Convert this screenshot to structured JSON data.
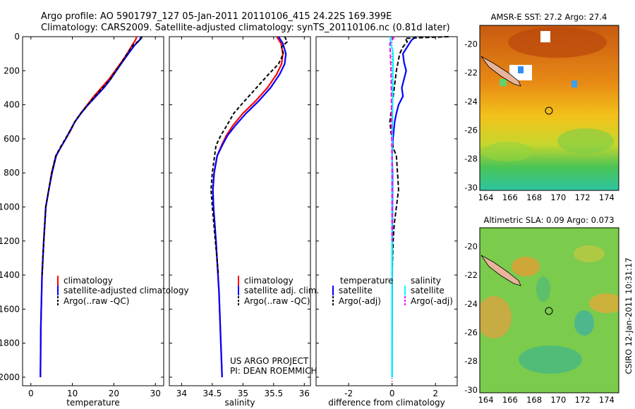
{
  "header": {
    "line1": "Argo profile: AO 5901797_127 05-Jan-2011 20110106_415 24.22S 169.399E",
    "line2": "Climatology: CARS2009. Satellite-adjusted climatology: synTS_20110106.nc (0.81d later)"
  },
  "footer": {
    "project": "US ARGO PROJECT",
    "pi": "PI: DEAN ROEMMICH",
    "stamp": "CSIRO 12-Jan-2011 10:31:17"
  },
  "colors": {
    "climatology": "#ff0000",
    "satellite": "#0000ff",
    "argo": "#000000",
    "sat_salinity": "#00ffff",
    "argo_salinity": "#ff00ff",
    "land": "#e8b49a"
  },
  "chart_data": [
    {
      "type": "line",
      "id": "temperature",
      "xlabel": "temperature",
      "xlim": [
        -2,
        32
      ],
      "ylim": [
        2050,
        0
      ],
      "xticks": [
        0,
        10,
        20,
        30
      ],
      "yticks": [
        0,
        200,
        400,
        600,
        800,
        1000,
        1200,
        1400,
        1600,
        1800,
        2000
      ],
      "legend": [
        "climatology",
        "satellite-adjusted climatology",
        "Argo(..raw -QC)"
      ],
      "series": [
        {
          "name": "climatology",
          "color": "#ff0000",
          "dash": "",
          "x": [
            25.5,
            25.2,
            24.4,
            23.2,
            21.8,
            20.3,
            18.8,
            17.0,
            15.2,
            13.6,
            12.0,
            10.6,
            9.6,
            8.4,
            7.2,
            6.0,
            5.0,
            4.3,
            3.6,
            3.1,
            2.7,
            2.4,
            2.3
          ],
          "y": [
            0,
            20,
            50,
            100,
            150,
            200,
            250,
            300,
            350,
            400,
            450,
            500,
            550,
            600,
            650,
            700,
            800,
            900,
            1000,
            1200,
            1400,
            1700,
            2000
          ]
        },
        {
          "name": "satellite-adjusted climatology",
          "color": "#0000ff",
          "dash": "",
          "x": [
            26.6,
            26.2,
            25.0,
            23.5,
            22.0,
            20.6,
            19.2,
            17.6,
            15.7,
            13.8,
            12.1,
            10.6,
            9.5,
            8.4,
            7.2,
            6.1,
            5.1,
            4.3,
            3.6,
            3.1,
            2.7,
            2.4,
            2.3
          ],
          "y": [
            0,
            20,
            50,
            100,
            150,
            200,
            250,
            300,
            350,
            400,
            450,
            500,
            550,
            600,
            650,
            700,
            800,
            900,
            1000,
            1200,
            1400,
            1700,
            2000
          ]
        },
        {
          "name": "Argo(..raw -QC)",
          "color": "#000000",
          "dash": "5,3",
          "x": [
            26.8,
            26.3,
            24.6,
            23.2,
            21.9,
            20.5,
            19.1,
            17.3,
            15.4,
            13.7,
            12.0,
            10.6,
            9.5,
            8.3,
            7.1,
            6.0,
            5.0,
            4.3,
            3.6,
            3.1,
            2.7
          ],
          "y": [
            0,
            20,
            50,
            100,
            150,
            200,
            250,
            300,
            350,
            400,
            450,
            500,
            550,
            600,
            650,
            700,
            800,
            900,
            1000,
            1200,
            1400
          ]
        }
      ]
    },
    {
      "type": "line",
      "id": "salinity",
      "xlabel": "salinity",
      "xlim": [
        33.8,
        36.1
      ],
      "ylim": [
        2050,
        0
      ],
      "xticks": [
        34,
        34.5,
        35,
        35.5,
        36
      ],
      "yticks": [
        0,
        200,
        400,
        600,
        800,
        1000,
        1200,
        1400,
        1600,
        1800,
        2000
      ],
      "legend": [
        "climatology",
        "satellite adj. clim.",
        "Argo(..raw -QC)"
      ],
      "series": [
        {
          "name": "climatology",
          "color": "#ff0000",
          "dash": "",
          "x": [
            35.55,
            35.62,
            35.65,
            35.63,
            35.55,
            35.4,
            35.2,
            35.0,
            34.84,
            34.73,
            34.65,
            34.58,
            34.53,
            34.51,
            34.52,
            34.56,
            34.61,
            34.64,
            34.66
          ],
          "y": [
            0,
            40,
            100,
            160,
            220,
            300,
            380,
            450,
            520,
            580,
            640,
            700,
            800,
            900,
            1000,
            1200,
            1500,
            1800,
            2000
          ]
        },
        {
          "name": "satellite adj. clim.",
          "color": "#0000ff",
          "dash": "",
          "x": [
            35.58,
            35.65,
            35.7,
            35.68,
            35.6,
            35.45,
            35.25,
            35.05,
            34.88,
            34.75,
            34.66,
            34.58,
            34.53,
            34.51,
            34.52,
            34.56,
            34.61,
            34.64,
            34.66
          ],
          "y": [
            0,
            40,
            100,
            160,
            220,
            300,
            380,
            450,
            520,
            580,
            640,
            700,
            800,
            900,
            1000,
            1200,
            1500,
            1800,
            2000
          ]
        },
        {
          "name": "Argo(..raw -QC)",
          "color": "#000000",
          "dash": "5,3",
          "x": [
            35.68,
            35.72,
            35.63,
            35.66,
            35.58,
            35.42,
            35.22,
            35.02,
            34.85,
            34.74,
            34.64,
            34.56,
            34.5,
            34.48,
            34.5,
            34.55,
            34.6
          ],
          "y": [
            0,
            30,
            60,
            100,
            160,
            220,
            300,
            380,
            450,
            520,
            580,
            640,
            800,
            900,
            1000,
            1200,
            1400
          ]
        }
      ]
    },
    {
      "type": "line",
      "id": "difference",
      "xlabel": "difference from climatology",
      "xlim": [
        -3.5,
        3.0
      ],
      "ylim": [
        2050,
        0
      ],
      "xticks": [
        -2,
        0,
        2
      ],
      "yticks": [
        0,
        200,
        400,
        600,
        800,
        1000,
        1200,
        1400,
        1600,
        1800,
        2000
      ],
      "legend_groups": [
        "temperature",
        "salinity"
      ],
      "legend": [
        "satellite",
        "Argo(-adj)",
        "satellite",
        "Argo(-adj)"
      ],
      "series": [
        {
          "name": "satellite (temperature)",
          "color": "#0000ff",
          "dash": "",
          "x": [
            1.1,
            0.9,
            0.7,
            0.5,
            0.55,
            0.65,
            0.55,
            0.45,
            0.5,
            0.3,
            0.2,
            0.12,
            0.08,
            0.04,
            0.0,
            0.02,
            0.01,
            0.0
          ],
          "y": [
            0,
            20,
            60,
            100,
            150,
            200,
            250,
            300,
            350,
            400,
            450,
            500,
            550,
            600,
            700,
            800,
            1200,
            2000
          ]
        },
        {
          "name": "Argo(-adj) (temperature)",
          "color": "#000000",
          "dash": "6,3",
          "x": [
            2.6,
            0.6,
            0.7,
            0.5,
            0.35,
            0.2,
            0.1,
            0.0,
            -0.1,
            -0.05,
            0.05,
            0.2,
            0.25,
            0.3,
            0.2,
            0.1,
            0.05,
            0.0
          ],
          "y": [
            0,
            10,
            30,
            60,
            100,
            200,
            300,
            400,
            500,
            560,
            650,
            700,
            800,
            900,
            1000,
            1100,
            1200,
            1400
          ]
        },
        {
          "name": "satellite (salinity)",
          "color": "#00ffff",
          "dash": "",
          "x": [
            -0.1,
            -0.05,
            0.05,
            0.04,
            0.02,
            0.0,
            0.0
          ],
          "y": [
            0,
            40,
            100,
            200,
            400,
            700,
            2000
          ]
        },
        {
          "name": "Argo(-adj) (salinity)",
          "color": "#ff00ff",
          "dash": "6,3",
          "x": [
            0.1,
            -0.1,
            -0.05,
            -0.02,
            0.0,
            0.0
          ],
          "y": [
            0,
            40,
            200,
            500,
            800,
            1200
          ]
        }
      ]
    },
    {
      "type": "heatmap",
      "id": "sst_map",
      "title": "AMSR-E SST: 27.2 Argo: 27.4",
      "xlim": [
        163.5,
        175
      ],
      "ylim": [
        -30.2,
        -18.7
      ],
      "xticks": [
        164,
        166,
        168,
        170,
        172,
        174
      ],
      "yticks": [
        -20,
        -22,
        -24,
        -26,
        -28,
        -30
      ],
      "argo_position": [
        169.399,
        -24.22
      ]
    },
    {
      "type": "heatmap",
      "id": "sla_map",
      "title": "Altimetric SLA: 0.09 Argo: 0.073",
      "xlim": [
        163.5,
        175
      ],
      "ylim": [
        -30.2,
        -18.7
      ],
      "xticks": [
        164,
        166,
        168,
        170,
        172,
        174
      ],
      "yticks": [
        -20,
        -22,
        -24,
        -26,
        -28,
        -30
      ],
      "argo_position": [
        169.399,
        -24.22
      ]
    }
  ]
}
